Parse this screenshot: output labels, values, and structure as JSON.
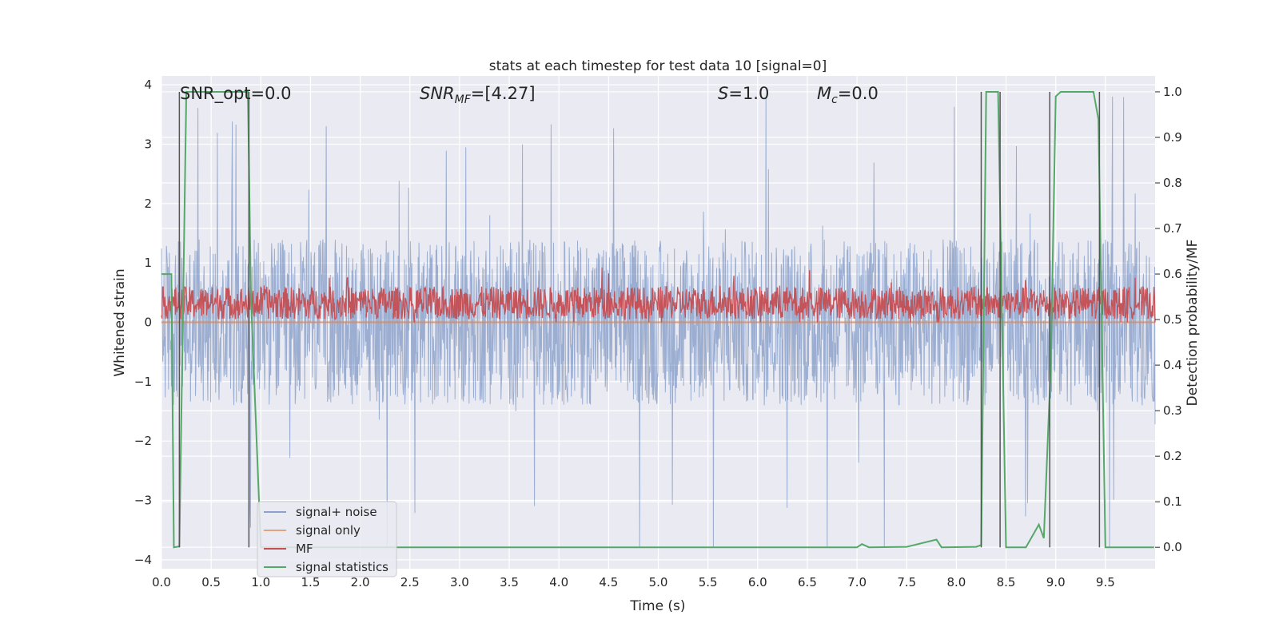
{
  "chart_data": {
    "type": "line",
    "title": "stats at each timestep for test data 10 [signal=0]",
    "xlabel": "Time (s)",
    "ylabel": "Whitened strain",
    "y2label": "Detection probability/MF",
    "xlim": [
      0,
      10
    ],
    "ylim": [
      -4.15,
      4.15
    ],
    "y2lim": [
      -0.047,
      1.035
    ],
    "xticks": [
      "0.0",
      "0.5",
      "1.0",
      "1.5",
      "2.0",
      "2.5",
      "3.0",
      "3.5",
      "4.0",
      "4.5",
      "5.0",
      "5.5",
      "6.0",
      "6.5",
      "7.0",
      "7.5",
      "8.0",
      "8.5",
      "9.0",
      "9.5"
    ],
    "xtick_values": [
      0,
      0.5,
      1,
      1.5,
      2,
      2.5,
      3,
      3.5,
      4,
      4.5,
      5,
      5.5,
      6,
      6.5,
      7,
      7.5,
      8,
      8.5,
      9,
      9.5
    ],
    "yticks": [
      "−4",
      "−3",
      "−2",
      "−1",
      "0",
      "1",
      "2",
      "3",
      "4"
    ],
    "ytick_values": [
      -4,
      -3,
      -2,
      -1,
      0,
      1,
      2,
      3,
      4
    ],
    "y2ticks": [
      "0.0",
      "0.1",
      "0.2",
      "0.3",
      "0.4",
      "0.5",
      "0.6",
      "0.7",
      "0.8",
      "0.9",
      "1.0"
    ],
    "y2tick_values": [
      0,
      0.1,
      0.2,
      0.3,
      0.4,
      0.5,
      0.6,
      0.7,
      0.8,
      0.9,
      1.0
    ],
    "grid": true,
    "legend_placement": "lower-left",
    "annotations": {
      "snr_opt": "SNR_opt=0.0",
      "snr_mf_main": "SNR",
      "snr_mf_sub": "MF",
      "snr_mf_rest": "=[4.27]",
      "s_var": "S",
      "s_rest": "=1.0",
      "mc_var": "M",
      "mc_sub": "c",
      "mc_rest": "=0.0"
    },
    "vertical_markers": [
      0.18,
      0.88,
      8.25,
      8.44,
      8.94,
      9.44
    ],
    "series": [
      {
        "name": "signal+ noise",
        "color": "#4c72b0",
        "axis": "left",
        "kind": "noise",
        "band": [
          -1.4,
          1.4
        ],
        "peak_range": [
          -3.8,
          3.8
        ]
      },
      {
        "name": "signal only",
        "color": "#dd8452",
        "axis": "left",
        "kind": "line",
        "values_x": [
          0,
          10
        ],
        "values_y": [
          0,
          0
        ]
      },
      {
        "name": "MF",
        "color": "#c44e52",
        "axis": "left",
        "kind": "noise",
        "band": [
          0.05,
          0.6
        ],
        "peak_range": [
          0.0,
          0.95
        ]
      },
      {
        "name": "signal statistics",
        "color": "#55a868",
        "axis": "right",
        "kind": "line",
        "values_x": [
          0,
          0.1,
          0.125,
          0.18,
          0.25,
          0.87,
          0.9,
          1.0,
          7.0,
          7.05,
          7.12,
          7.5,
          7.8,
          7.85,
          8.2,
          8.25,
          8.3,
          8.42,
          8.5,
          8.56,
          8.7,
          8.83,
          8.88,
          8.95,
          9.0,
          9.05,
          9.38,
          9.43,
          9.5,
          9.99
        ],
        "values_y": [
          0.6,
          0.6,
          0.0,
          0.002,
          1.0,
          1.0,
          0.55,
          0.0,
          0.0,
          0.007,
          0.0,
          0.001,
          0.017,
          0.0,
          0.001,
          0.005,
          1.0,
          1.0,
          0.0,
          0.0,
          0.0,
          0.05,
          0.02,
          0.4,
          0.99,
          1.0,
          1.0,
          0.94,
          0.0,
          0.0
        ]
      }
    ]
  }
}
